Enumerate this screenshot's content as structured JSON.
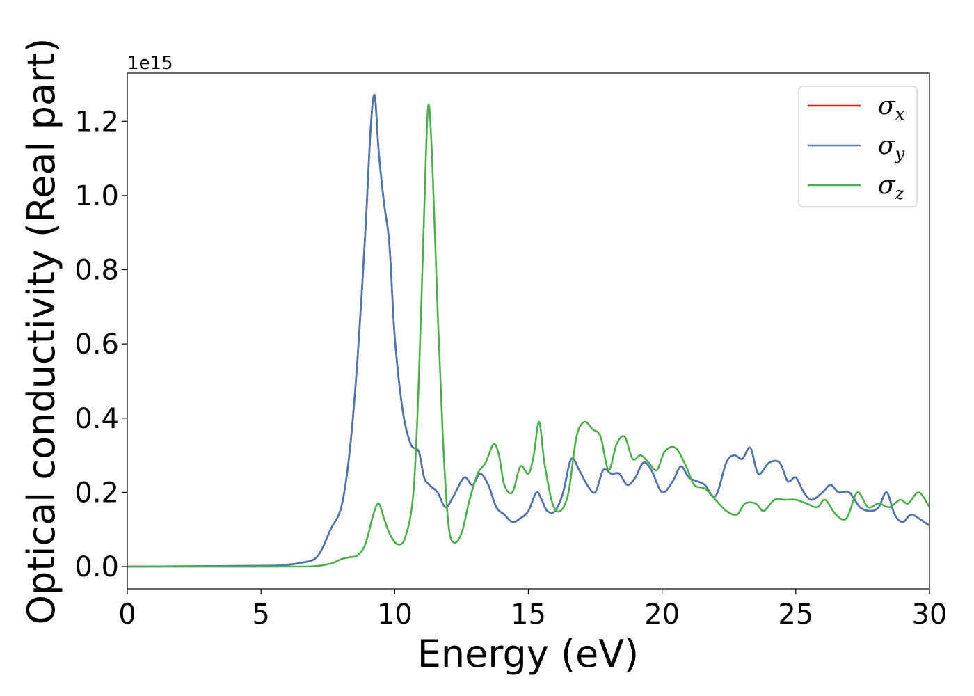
{
  "chart_data": {
    "type": "line",
    "xlabel": "Energy (eV)",
    "ylabel": "Optical conductivity (Real part)",
    "y_offset_label": "1e15",
    "xlim": [
      0,
      30
    ],
    "ylim": [
      -0.06,
      1.33
    ],
    "xticks": [
      "0",
      "5",
      "10",
      "15",
      "20",
      "25",
      "30"
    ],
    "xtick_values": [
      0,
      5,
      10,
      15,
      20,
      25,
      30
    ],
    "yticks": [
      "0.0",
      "0.2",
      "0.4",
      "0.6",
      "0.8",
      "1.0",
      "1.2"
    ],
    "ytick_values": [
      0.0,
      0.2,
      0.4,
      0.6,
      0.8,
      1.0,
      1.2
    ],
    "grid": false,
    "legend_position": "top-right",
    "series": [
      {
        "name": "σx",
        "symbol": "σ",
        "subscript": "x",
        "color": "#e41a1c",
        "x": [
          0,
          5,
          6,
          6.5,
          7,
          7.3,
          7.6,
          8,
          8.3,
          8.6,
          8.9,
          9.1,
          9.25,
          9.4,
          9.6,
          9.8,
          10,
          10.3,
          10.6,
          10.9,
          11.1,
          11.3,
          11.6,
          11.9,
          12.2,
          12.6,
          12.9,
          13.2,
          13.5,
          13.8,
          14.1,
          14.4,
          14.7,
          15.0,
          15.3,
          15.5,
          15.7,
          16.0,
          16.3,
          16.6,
          16.9,
          17.2,
          17.5,
          17.8,
          18.1,
          18.4,
          18.7,
          19.0,
          19.3,
          19.6,
          20.0,
          20.4,
          20.7,
          21.0,
          21.3,
          21.6,
          22.0,
          22.4,
          22.7,
          23.0,
          23.3,
          23.6,
          24.0,
          24.4,
          24.7,
          25.0,
          25.3,
          25.6,
          26.0,
          26.3,
          26.6,
          27.0,
          27.4,
          27.8,
          28.1,
          28.4,
          28.7,
          29.0,
          29.3,
          29.6,
          30.0
        ],
        "values": [
          0,
          0.002,
          0.005,
          0.01,
          0.02,
          0.05,
          0.1,
          0.16,
          0.3,
          0.55,
          0.9,
          1.18,
          1.27,
          1.12,
          0.98,
          0.87,
          0.62,
          0.42,
          0.33,
          0.31,
          0.24,
          0.22,
          0.2,
          0.16,
          0.19,
          0.24,
          0.22,
          0.25,
          0.22,
          0.16,
          0.14,
          0.12,
          0.13,
          0.15,
          0.2,
          0.18,
          0.15,
          0.15,
          0.2,
          0.29,
          0.26,
          0.22,
          0.2,
          0.26,
          0.25,
          0.25,
          0.22,
          0.24,
          0.28,
          0.26,
          0.2,
          0.23,
          0.27,
          0.24,
          0.23,
          0.22,
          0.19,
          0.28,
          0.3,
          0.29,
          0.32,
          0.25,
          0.28,
          0.28,
          0.23,
          0.24,
          0.2,
          0.18,
          0.2,
          0.22,
          0.2,
          0.2,
          0.16,
          0.15,
          0.16,
          0.2,
          0.14,
          0.12,
          0.14,
          0.13,
          0.11
        ]
      },
      {
        "name": "σy",
        "symbol": "σ",
        "subscript": "y",
        "color": "#4a78b0",
        "x": [
          0,
          5,
          6,
          6.5,
          7,
          7.3,
          7.6,
          8,
          8.3,
          8.6,
          8.9,
          9.1,
          9.25,
          9.4,
          9.6,
          9.8,
          10,
          10.3,
          10.6,
          10.9,
          11.1,
          11.3,
          11.6,
          11.9,
          12.2,
          12.6,
          12.9,
          13.2,
          13.5,
          13.8,
          14.1,
          14.4,
          14.7,
          15.0,
          15.3,
          15.5,
          15.7,
          16.0,
          16.3,
          16.6,
          16.9,
          17.2,
          17.5,
          17.8,
          18.1,
          18.4,
          18.7,
          19.0,
          19.3,
          19.6,
          20.0,
          20.4,
          20.7,
          21.0,
          21.3,
          21.6,
          22.0,
          22.4,
          22.7,
          23.0,
          23.3,
          23.6,
          24.0,
          24.4,
          24.7,
          25.0,
          25.3,
          25.6,
          26.0,
          26.3,
          26.6,
          27.0,
          27.4,
          27.8,
          28.1,
          28.4,
          28.7,
          29.0,
          29.3,
          29.6,
          30.0
        ],
        "values": [
          0,
          0.002,
          0.005,
          0.01,
          0.02,
          0.05,
          0.1,
          0.16,
          0.3,
          0.55,
          0.9,
          1.18,
          1.27,
          1.12,
          0.98,
          0.87,
          0.62,
          0.42,
          0.33,
          0.31,
          0.24,
          0.22,
          0.2,
          0.16,
          0.19,
          0.24,
          0.22,
          0.25,
          0.22,
          0.16,
          0.14,
          0.12,
          0.13,
          0.15,
          0.2,
          0.18,
          0.15,
          0.15,
          0.2,
          0.29,
          0.26,
          0.22,
          0.2,
          0.26,
          0.25,
          0.25,
          0.22,
          0.24,
          0.28,
          0.26,
          0.2,
          0.23,
          0.27,
          0.24,
          0.23,
          0.22,
          0.19,
          0.28,
          0.3,
          0.29,
          0.32,
          0.25,
          0.28,
          0.28,
          0.23,
          0.24,
          0.2,
          0.18,
          0.2,
          0.22,
          0.2,
          0.2,
          0.16,
          0.15,
          0.16,
          0.2,
          0.14,
          0.12,
          0.14,
          0.13,
          0.11
        ]
      },
      {
        "name": "σz",
        "symbol": "σ",
        "subscript": "z",
        "color": "#4daf4a",
        "x": [
          0,
          6,
          7,
          7.4,
          7.7,
          8.0,
          8.3,
          8.6,
          8.9,
          9.2,
          9.4,
          9.6,
          9.8,
          10.1,
          10.4,
          10.7,
          10.9,
          11.1,
          11.25,
          11.4,
          11.6,
          11.8,
          12.0,
          12.2,
          12.5,
          12.8,
          13.1,
          13.4,
          13.7,
          13.9,
          14.1,
          14.4,
          14.7,
          15.0,
          15.2,
          15.4,
          15.6,
          15.9,
          16.2,
          16.5,
          16.8,
          17.1,
          17.4,
          17.7,
          18.0,
          18.3,
          18.6,
          18.9,
          19.2,
          19.5,
          19.8,
          20.1,
          20.5,
          20.9,
          21.2,
          21.6,
          22.0,
          22.4,
          22.8,
          23.1,
          23.5,
          23.8,
          24.2,
          24.6,
          25.0,
          25.4,
          25.8,
          26.1,
          26.5,
          26.9,
          27.3,
          27.7,
          28.1,
          28.5,
          28.9,
          29.2,
          29.6,
          30.0
        ],
        "values": [
          0,
          0,
          0.001,
          0.005,
          0.01,
          0.02,
          0.025,
          0.03,
          0.06,
          0.14,
          0.17,
          0.13,
          0.09,
          0.06,
          0.08,
          0.2,
          0.5,
          0.95,
          1.24,
          1.1,
          0.7,
          0.35,
          0.12,
          0.065,
          0.09,
          0.18,
          0.25,
          0.28,
          0.33,
          0.3,
          0.22,
          0.2,
          0.27,
          0.25,
          0.3,
          0.39,
          0.28,
          0.17,
          0.15,
          0.2,
          0.35,
          0.39,
          0.37,
          0.35,
          0.26,
          0.33,
          0.35,
          0.29,
          0.3,
          0.28,
          0.26,
          0.31,
          0.32,
          0.27,
          0.22,
          0.21,
          0.18,
          0.15,
          0.14,
          0.17,
          0.17,
          0.15,
          0.18,
          0.18,
          0.18,
          0.17,
          0.16,
          0.18,
          0.14,
          0.13,
          0.2,
          0.16,
          0.17,
          0.16,
          0.18,
          0.17,
          0.2,
          0.16
        ]
      }
    ]
  }
}
